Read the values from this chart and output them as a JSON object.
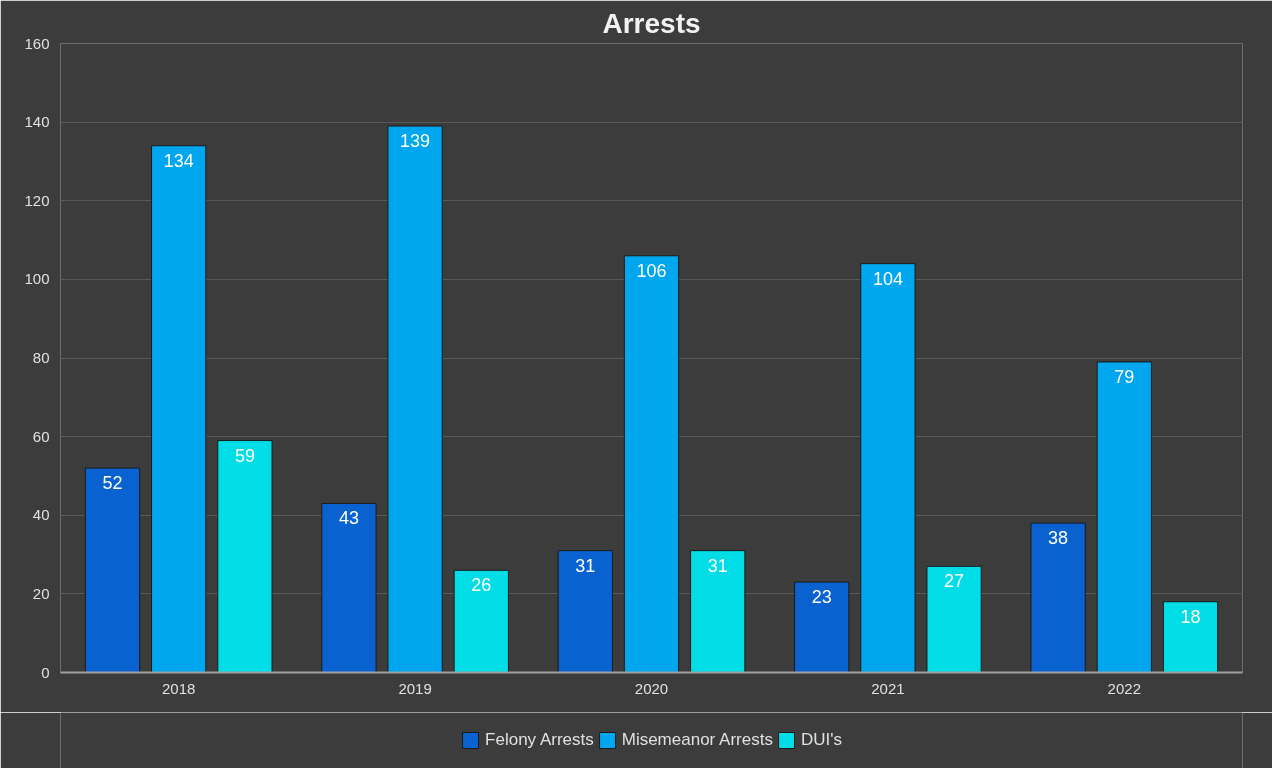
{
  "chart_data": {
    "type": "bar",
    "title": "Arrests",
    "categories": [
      "2018",
      "2019",
      "2020",
      "2021",
      "2022"
    ],
    "series": [
      {
        "name": "Felony Arrests",
        "color": "#0a62d0",
        "values": [
          52,
          43,
          31,
          23,
          38
        ]
      },
      {
        "name": "Misemeanor Arrests",
        "color": "#00a6ee",
        "values": [
          134,
          139,
          106,
          104,
          79
        ]
      },
      {
        "name": "DUI's",
        "color": "#00dde6",
        "values": [
          59,
          26,
          31,
          27,
          18
        ]
      }
    ],
    "ylim": [
      0,
      160
    ],
    "yticks": [
      0,
      20,
      40,
      60,
      80,
      100,
      120,
      140,
      160
    ],
    "grid": "y",
    "legend": "bottom",
    "data_labels": true
  }
}
